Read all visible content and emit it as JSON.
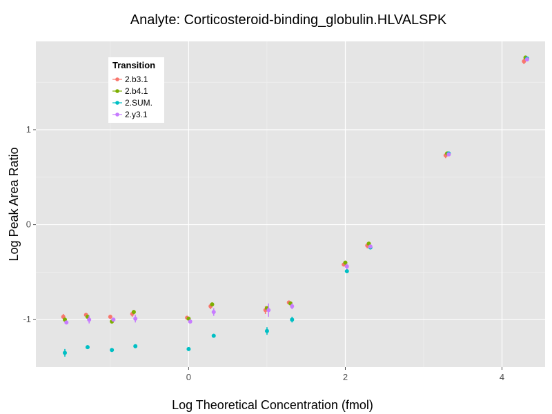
{
  "chart_data": {
    "type": "scatter",
    "title": "Analyte: Corticosteroid-binding_globulin.HLVALSPK",
    "xlabel": "Log Theoretical Concentration (fmol)",
    "ylabel": "Log Peak Area Ratio",
    "xlim": [
      -1.95,
      4.55
    ],
    "ylim": [
      -1.5,
      1.93
    ],
    "x_ticks": [
      0,
      2,
      4
    ],
    "y_ticks": [
      -1,
      0,
      1
    ],
    "x_tick_labels": [
      "0",
      "2",
      "4"
    ],
    "y_tick_labels": [
      "-1",
      "0",
      "1"
    ],
    "grid": true,
    "legend": {
      "title": "Transition",
      "placement": "top-left",
      "entries": [
        "2.b3.1",
        "2.b4.1",
        "2.SUM.",
        "2.y3.1"
      ]
    },
    "series": [
      {
        "name": "2.b3.1",
        "color": "#F8766D",
        "x": [
          -1.6,
          -1.31,
          -1.0,
          -0.72,
          -0.02,
          0.28,
          0.98,
          1.28,
          1.98,
          2.28,
          3.28,
          4.28
        ],
        "values": [
          -0.97,
          -0.95,
          -0.97,
          -0.94,
          -0.98,
          -0.86,
          -0.9,
          -0.82,
          -0.42,
          -0.22,
          0.73,
          1.72
        ],
        "err": [
          0.03,
          0.02,
          0.02,
          0.03,
          0.02,
          0.03,
          0.04,
          0.02,
          0.02,
          0.03,
          0.03,
          0.03
        ]
      },
      {
        "name": "2.b4.1",
        "color": "#7CAE00",
        "x": [
          -1.58,
          -1.29,
          -0.98,
          -0.7,
          0.0,
          0.3,
          1.0,
          1.3,
          2.0,
          2.3,
          3.3,
          4.3
        ],
        "values": [
          -1.0,
          -0.97,
          -1.02,
          -0.92,
          -0.99,
          -0.84,
          -0.88,
          -0.83,
          -0.4,
          -0.2,
          0.75,
          1.76
        ],
        "err": [
          0.02,
          0.02,
          0.02,
          0.02,
          0.02,
          0.02,
          0.02,
          0.02,
          0.02,
          0.02,
          0.02,
          0.02
        ]
      },
      {
        "name": "2.SUM.",
        "color": "#00BFC4",
        "x": [
          -1.58,
          -1.29,
          -0.98,
          -0.68,
          0.0,
          0.32,
          1.0,
          1.32,
          2.02,
          2.32,
          3.32,
          4.32
        ],
        "values": [
          -1.35,
          -1.29,
          -1.32,
          -1.28,
          -1.31,
          -1.17,
          -1.12,
          -1.0,
          -0.49,
          -0.24,
          0.75,
          1.75
        ],
        "err": [
          0.04,
          0.02,
          0.02,
          0.02,
          0.02,
          0.02,
          0.04,
          0.03,
          0.02,
          0.02,
          0.02,
          0.02
        ]
      },
      {
        "name": "2.y3.1",
        "color": "#C77CFF",
        "x": [
          -1.56,
          -1.27,
          -0.96,
          -0.68,
          0.02,
          0.32,
          1.02,
          1.32,
          2.02,
          2.32,
          3.32,
          4.32
        ],
        "values": [
          -1.03,
          -1.0,
          -1.0,
          -0.99,
          -1.02,
          -0.92,
          -0.9,
          -0.86,
          -0.44,
          -0.23,
          0.74,
          1.74
        ],
        "err": [
          0.02,
          0.04,
          0.02,
          0.04,
          0.02,
          0.04,
          0.07,
          0.03,
          0.03,
          0.02,
          0.02,
          0.02
        ]
      }
    ]
  }
}
